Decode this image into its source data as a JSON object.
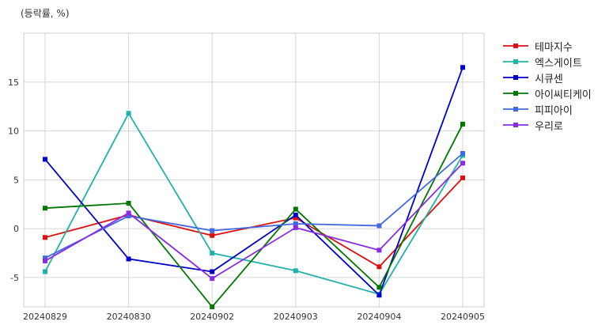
{
  "unit_label": "(등락률, %)",
  "chart_data": {
    "type": "line",
    "categories": [
      "20240829",
      "20240830",
      "20240902",
      "20240903",
      "20240904",
      "20240905"
    ],
    "ylim": [
      -8,
      20
    ],
    "yticks": [
      -5,
      0,
      5,
      10,
      15
    ],
    "grid": true,
    "legend_position": "right-top",
    "series": [
      {
        "name": "테마지수",
        "color": "#dd1111",
        "values": [
          -0.9,
          1.4,
          -0.7,
          1.1,
          -3.9,
          5.2
        ]
      },
      {
        "name": "엑스게이트",
        "color": "#20b2aa",
        "values": [
          -4.4,
          11.8,
          -2.5,
          -4.3,
          -6.7,
          7.5
        ]
      },
      {
        "name": "시큐센",
        "color": "#0000cc",
        "values": [
          7.1,
          -3.1,
          -4.4,
          1.4,
          -6.8,
          16.5
        ]
      },
      {
        "name": "아이씨티케이",
        "color": "#007700",
        "values": [
          2.1,
          2.6,
          -8.0,
          2.0,
          -6.0,
          10.7
        ]
      },
      {
        "name": "피피아이",
        "color": "#4169e1",
        "values": [
          -3.0,
          1.3,
          -0.2,
          0.5,
          0.3,
          7.7
        ]
      },
      {
        "name": "우리로",
        "color": "#8a2be2",
        "values": [
          -3.3,
          1.6,
          -5.1,
          0.1,
          -2.2,
          6.7
        ]
      }
    ]
  }
}
